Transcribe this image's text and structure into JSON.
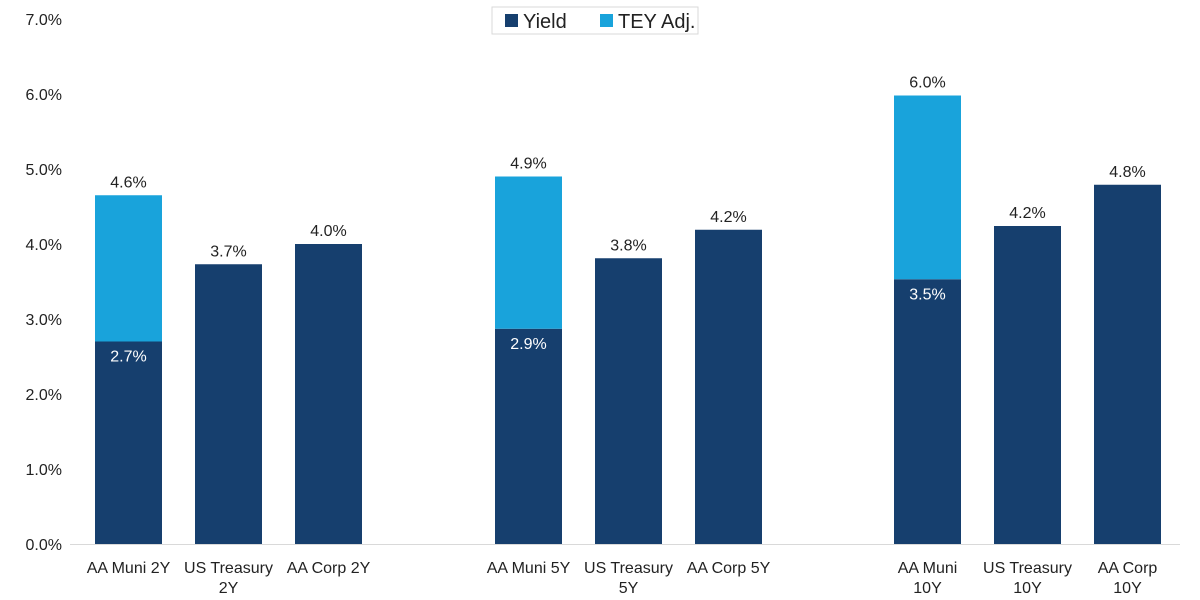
{
  "chart_data": {
    "type": "bar",
    "stacked": true,
    "title": "",
    "xlabel": "",
    "ylabel": "",
    "ylim": [
      0,
      7
    ],
    "yticks": [
      "0.0%",
      "1.0%",
      "2.0%",
      "3.0%",
      "4.0%",
      "5.0%",
      "6.0%",
      "7.0%"
    ],
    "legend_position": "top-center",
    "legend": [
      {
        "name": "Yield",
        "color": "#163F6E"
      },
      {
        "name": "TEY Adj.",
        "color": "#19A3DB"
      }
    ],
    "groups": [
      {
        "bars": [
          {
            "label": [
              "AA Muni 2Y"
            ],
            "yield": 2.7,
            "tey_adj": 1.95,
            "yield_label": "2.7%",
            "total_label": "4.6%"
          },
          {
            "label": [
              "US Treasury",
              "2Y"
            ],
            "yield": 3.73,
            "tey_adj": 0,
            "yield_label": "",
            "total_label": "3.7%"
          },
          {
            "label": [
              "AA Corp 2Y"
            ],
            "yield": 4.0,
            "tey_adj": 0,
            "yield_label": "",
            "total_label": "4.0%"
          }
        ]
      },
      {
        "bars": [
          {
            "label": [
              "AA Muni 5Y"
            ],
            "yield": 2.87,
            "tey_adj": 2.03,
            "yield_label": "2.9%",
            "total_label": "4.9%"
          },
          {
            "label": [
              "US Treasury",
              "5Y"
            ],
            "yield": 3.81,
            "tey_adj": 0,
            "yield_label": "",
            "total_label": "3.8%"
          },
          {
            "label": [
              "AA Corp 5Y"
            ],
            "yield": 4.19,
            "tey_adj": 0,
            "yield_label": "",
            "total_label": "4.2%"
          }
        ]
      },
      {
        "bars": [
          {
            "label": [
              "AA Muni",
              "10Y"
            ],
            "yield": 3.53,
            "tey_adj": 2.45,
            "yield_label": "3.5%",
            "total_label": "6.0%"
          },
          {
            "label": [
              "US Treasury",
              "10Y"
            ],
            "yield": 4.24,
            "tey_adj": 0,
            "yield_label": "",
            "total_label": "4.2%"
          },
          {
            "label": [
              "AA Corp",
              "10Y"
            ],
            "yield": 4.79,
            "tey_adj": 0,
            "yield_label": "",
            "total_label": "4.8%"
          }
        ]
      }
    ]
  }
}
